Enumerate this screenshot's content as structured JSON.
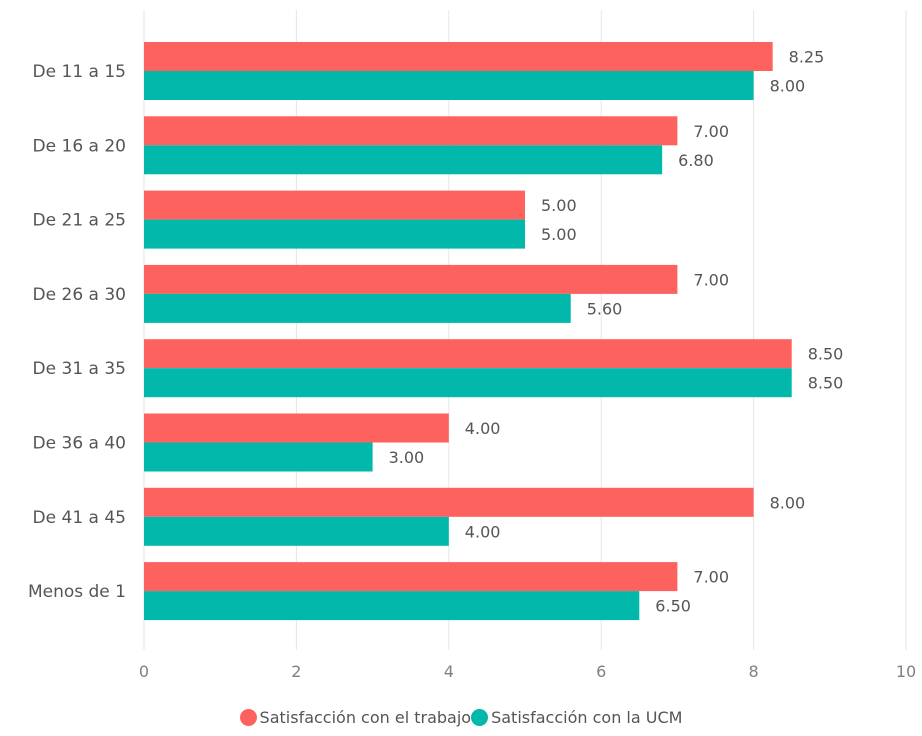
{
  "chart_data": {
    "type": "bar",
    "orientation": "horizontal",
    "categories": [
      "De 11 a 15",
      "De 16 a 20",
      "De 21 a 25",
      "De 26 a 30",
      "De 31 a 35",
      "De 36 a 40",
      "De 41 a 45",
      "Menos de 1"
    ],
    "series": [
      {
        "name": "Satisfacción con el trabajo",
        "color": "#FD625E",
        "values": [
          8.25,
          7.0,
          5.0,
          7.0,
          8.5,
          4.0,
          8.0,
          7.0
        ],
        "labels": [
          "8.25",
          "7.00",
          "5.00",
          "7.00",
          "8.50",
          "4.00",
          "8.00",
          "7.00"
        ]
      },
      {
        "name": "Satisfacción con la UCM",
        "color": "#01B8AA",
        "values": [
          8.0,
          6.8,
          5.0,
          5.6,
          8.5,
          3.0,
          4.0,
          6.5
        ],
        "labels": [
          "8.00",
          "6.80",
          "5.00",
          "5.60",
          "8.50",
          "3.00",
          "4.00",
          "6.50"
        ]
      }
    ],
    "xlim": [
      0,
      10
    ],
    "xticks": [
      0,
      2,
      4,
      6,
      8,
      10
    ],
    "xtick_labels": [
      "0",
      "2",
      "4",
      "6",
      "8",
      "10"
    ],
    "grid": true,
    "legend_position": "bottom-center",
    "title": "",
    "xlabel": "",
    "ylabel": ""
  },
  "legend": {
    "items": [
      {
        "label": "Satisfacción con el trabajo",
        "color": "#FD625E"
      },
      {
        "label": "Satisfacción con la UCM",
        "color": "#01B8AA"
      }
    ]
  }
}
